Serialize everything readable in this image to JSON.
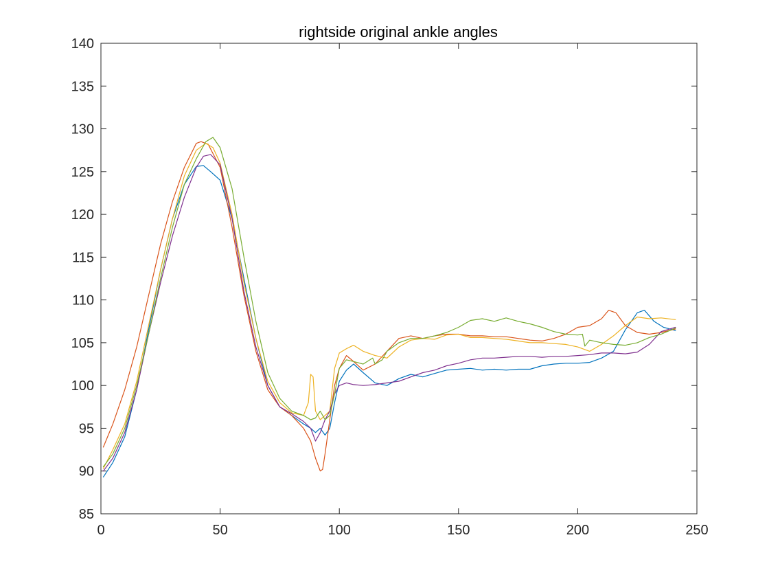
{
  "chart_data": {
    "type": "line",
    "title": "rightside original ankle angles",
    "xlabel": "",
    "ylabel": "",
    "xlim": [
      0,
      250
    ],
    "ylim": [
      85,
      140
    ],
    "xticks": [
      0,
      50,
      100,
      150,
      200,
      250
    ],
    "yticks": [
      85,
      90,
      95,
      100,
      105,
      110,
      115,
      120,
      125,
      130,
      135,
      140
    ],
    "grid": false,
    "legend": false,
    "series": [
      {
        "color": "#0072BD",
        "x": [
          1,
          5,
          10,
          15,
          20,
          25,
          30,
          35,
          40,
          43,
          46,
          50,
          55,
          60,
          65,
          70,
          75,
          80,
          85,
          88,
          90,
          92,
          94,
          96,
          98,
          100,
          103,
          106,
          110,
          115,
          120,
          125,
          130,
          135,
          140,
          145,
          150,
          155,
          160,
          165,
          170,
          175,
          180,
          185,
          190,
          195,
          200,
          205,
          210,
          215,
          220,
          225,
          228,
          232,
          236,
          240,
          241
        ],
        "y": [
          89.3,
          91.0,
          94.0,
          99.5,
          106.5,
          113.5,
          119.5,
          123.5,
          125.6,
          125.7,
          125.0,
          124.0,
          119.5,
          112.5,
          105.5,
          100.0,
          97.5,
          96.5,
          95.5,
          95.0,
          94.5,
          95.0,
          94.2,
          95.0,
          98.0,
          100.5,
          101.8,
          102.5,
          101.5,
          100.3,
          100.0,
          100.8,
          101.3,
          101.0,
          101.4,
          101.8,
          101.9,
          102.0,
          101.8,
          101.9,
          101.8,
          101.9,
          101.9,
          102.3,
          102.5,
          102.6,
          102.6,
          102.7,
          103.2,
          104.0,
          106.5,
          108.5,
          108.8,
          107.5,
          106.8,
          106.5,
          106.4
        ]
      },
      {
        "color": "#D95319",
        "x": [
          1,
          5,
          10,
          15,
          20,
          25,
          30,
          35,
          40,
          42,
          45,
          50,
          55,
          60,
          65,
          70,
          75,
          80,
          85,
          88,
          90,
          92,
          93,
          94,
          96,
          98,
          100,
          103,
          106,
          110,
          115,
          120,
          125,
          130,
          135,
          140,
          145,
          150,
          155,
          160,
          165,
          170,
          175,
          180,
          185,
          190,
          195,
          200,
          205,
          210,
          213,
          216,
          220,
          225,
          230,
          235,
          241
        ],
        "y": [
          92.8,
          95.5,
          99.5,
          104.5,
          110.5,
          116.5,
          121.5,
          125.5,
          128.3,
          128.5,
          128.2,
          125.5,
          118.5,
          110.5,
          104.0,
          99.5,
          97.5,
          96.5,
          95.0,
          93.5,
          91.5,
          90.0,
          90.2,
          92.0,
          96.0,
          100.0,
          102.0,
          103.5,
          102.8,
          101.8,
          102.5,
          104.0,
          105.5,
          105.8,
          105.5,
          105.8,
          106.0,
          106.0,
          105.8,
          105.8,
          105.7,
          105.7,
          105.5,
          105.3,
          105.2,
          105.5,
          106.0,
          106.8,
          107.0,
          107.8,
          108.8,
          108.5,
          107.0,
          106.2,
          106.0,
          106.2,
          106.6
        ]
      },
      {
        "color": "#EDB120",
        "x": [
          1,
          5,
          10,
          15,
          20,
          25,
          30,
          35,
          40,
          44,
          47,
          50,
          55,
          60,
          65,
          70,
          75,
          80,
          85,
          87,
          88,
          89,
          90,
          92,
          94,
          96,
          98,
          100,
          103,
          106,
          110,
          115,
          120,
          125,
          130,
          135,
          140,
          145,
          150,
          155,
          160,
          165,
          170,
          175,
          180,
          185,
          190,
          195,
          200,
          205,
          210,
          215,
          220,
          225,
          230,
          235,
          241
        ],
        "y": [
          90.3,
          92.5,
          95.5,
          100.5,
          107.0,
          113.5,
          119.5,
          124.5,
          127.5,
          128.3,
          127.8,
          126.0,
          120.0,
          112.0,
          105.5,
          100.5,
          98.0,
          96.8,
          96.5,
          98.0,
          101.3,
          101.0,
          97.0,
          96.0,
          96.5,
          97.0,
          102.0,
          103.8,
          104.3,
          104.7,
          104.0,
          103.5,
          103.2,
          104.5,
          105.3,
          105.5,
          105.4,
          105.9,
          106.0,
          105.6,
          105.6,
          105.5,
          105.4,
          105.2,
          105.0,
          105.0,
          104.9,
          104.8,
          104.5,
          104.0,
          104.8,
          105.8,
          107.0,
          108.0,
          107.8,
          107.9,
          107.7
        ]
      },
      {
        "color": "#7E2F8E",
        "x": [
          1,
          5,
          10,
          15,
          20,
          25,
          30,
          35,
          40,
          43,
          46,
          50,
          55,
          60,
          65,
          70,
          75,
          80,
          85,
          88,
          90,
          92,
          94,
          96,
          98,
          100,
          103,
          106,
          110,
          115,
          120,
          125,
          130,
          135,
          140,
          145,
          150,
          155,
          160,
          165,
          170,
          175,
          180,
          185,
          190,
          195,
          200,
          205,
          210,
          215,
          220,
          225,
          230,
          235,
          241
        ],
        "y": [
          90.0,
          91.5,
          94.5,
          99.5,
          106.0,
          112.0,
          117.5,
          122.0,
          125.5,
          126.8,
          127.0,
          125.8,
          119.5,
          111.0,
          104.5,
          100.0,
          97.5,
          96.7,
          95.8,
          95.0,
          93.5,
          94.5,
          96.0,
          97.0,
          99.0,
          100.0,
          100.3,
          100.1,
          100.0,
          100.1,
          100.3,
          100.5,
          101.0,
          101.5,
          101.8,
          102.3,
          102.6,
          103.0,
          103.2,
          103.2,
          103.3,
          103.4,
          103.4,
          103.3,
          103.4,
          103.4,
          103.5,
          103.6,
          103.8,
          103.8,
          103.7,
          103.9,
          104.8,
          106.3,
          106.8
        ]
      },
      {
        "color": "#77AC30",
        "x": [
          1,
          5,
          10,
          15,
          20,
          25,
          30,
          35,
          40,
          44,
          47,
          50,
          55,
          60,
          65,
          70,
          75,
          80,
          85,
          88,
          90,
          92,
          94,
          96,
          98,
          100,
          103,
          106,
          110,
          114,
          115,
          118,
          120,
          125,
          130,
          135,
          140,
          145,
          150,
          155,
          160,
          165,
          170,
          175,
          180,
          185,
          190,
          195,
          200,
          202,
          203,
          205,
          210,
          215,
          220,
          225,
          230,
          235,
          241
        ],
        "y": [
          90.5,
          92.0,
          95.0,
          100.0,
          106.0,
          112.5,
          118.5,
          123.5,
          126.5,
          128.5,
          129.0,
          127.8,
          123.0,
          115.0,
          107.5,
          101.5,
          98.5,
          97.0,
          96.5,
          96.0,
          96.2,
          97.0,
          96.0,
          96.5,
          99.0,
          102.0,
          103.0,
          102.8,
          102.5,
          103.2,
          102.5,
          103.0,
          104.0,
          105.0,
          105.5,
          105.5,
          105.8,
          106.2,
          106.8,
          107.6,
          107.8,
          107.5,
          107.9,
          107.5,
          107.2,
          106.8,
          106.3,
          106.0,
          105.9,
          106.0,
          104.6,
          105.3,
          105.0,
          104.8,
          104.7,
          105.0,
          105.6,
          106.0,
          106.7
        ]
      }
    ]
  }
}
